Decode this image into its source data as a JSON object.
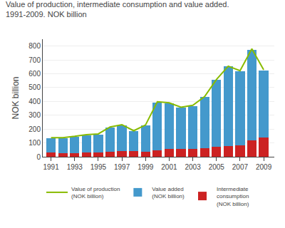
{
  "chart_data": {
    "type": "bar",
    "title": "Value of production, intermediate consumption and value added.\n1991-2009. NOK billion",
    "ylabel": "NOK billion",
    "x": [
      1991,
      1992,
      1993,
      1994,
      1995,
      1996,
      1997,
      1998,
      1999,
      2000,
      2001,
      2002,
      2003,
      2004,
      2005,
      2006,
      2007,
      2008,
      2009
    ],
    "stacked": true,
    "series": [
      {
        "name": "Intermediate\nconsumption\n(NOK billion)",
        "type": "bar",
        "color": "#cc2222",
        "values": [
          30,
          28,
          28,
          30,
          32,
          35,
          40,
          40,
          38,
          48,
          55,
          55,
          58,
          62,
          70,
          78,
          85,
          120,
          140
        ]
      },
      {
        "name": "Value added\n(NOK billion)",
        "type": "bar",
        "color": "#4499cc",
        "values": [
          105,
          107,
          115,
          125,
          130,
          175,
          188,
          145,
          188,
          345,
          330,
          300,
          310,
          370,
          485,
          575,
          535,
          655,
          485
        ]
      },
      {
        "name": "Value of production\n(NOK billion)",
        "type": "line",
        "color": "#88bb00",
        "values": [
          138,
          138,
          148,
          160,
          165,
          215,
          232,
          188,
          230,
          398,
          390,
          358,
          372,
          435,
          558,
          655,
          622,
          780,
          628
        ]
      }
    ],
    "xlim": [
      1990.3,
      2009.9
    ],
    "xticks": [
      1991,
      1993,
      1995,
      1997,
      1999,
      2001,
      2003,
      2005,
      2007,
      2009
    ],
    "ylim": [
      0,
      850
    ],
    "yticks": [
      0,
      100,
      200,
      300,
      400,
      500,
      600,
      700,
      800
    ],
    "grid": "y",
    "legend": "bottom"
  }
}
